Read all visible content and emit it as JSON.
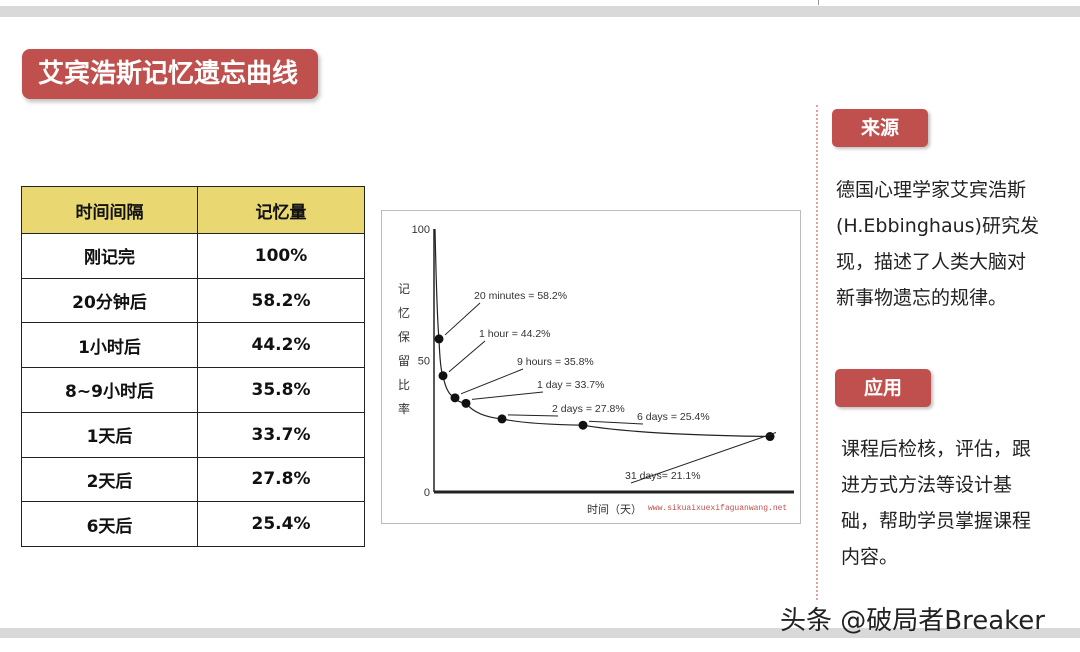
{
  "title": "艾宾浩斯记忆遗忘曲线",
  "table": {
    "headers": [
      "时间间隔",
      "记忆量"
    ],
    "rows": [
      [
        "刚记完",
        "100%"
      ],
      [
        "20分钟后",
        "58.2%"
      ],
      [
        "1小时后",
        "44.2%"
      ],
      [
        "8~9小时后",
        "35.8%"
      ],
      [
        "1天后",
        "33.7%"
      ],
      [
        "2天后",
        "27.8%"
      ],
      [
        "6天后",
        "25.4%"
      ]
    ]
  },
  "chart_data": {
    "type": "line",
    "y_ticks": [
      "100",
      "50",
      "0"
    ],
    "ylim": [
      0,
      100
    ],
    "ylabel": "记忆保留比率",
    "xlabel": "时间（天）",
    "source_text": "www.sikuaixuexifaguanwang.net",
    "x_scale": "non-linear",
    "points": [
      {
        "x": "20 minutes",
        "y": 58.2,
        "label": "20 minutes = 58.2%"
      },
      {
        "x": "1 hour",
        "y": 44.2,
        "label": "1 hour = 44.2%"
      },
      {
        "x": "9 hours",
        "y": 35.8,
        "label": "9 hours = 35.8%"
      },
      {
        "x": "1 day",
        "y": 33.7,
        "label": "1 day = 33.7%"
      },
      {
        "x": "2 days",
        "y": 27.8,
        "label": "2 days = 27.8%"
      },
      {
        "x": "6 days",
        "y": 25.4,
        "label": "6 days = 25.4%"
      },
      {
        "x": "31 days",
        "y": 21.1,
        "label": "31 days= 21.1%"
      }
    ]
  },
  "source_tag": "来源",
  "source_text": "德国心理学家艾宾浩斯(H.Ebbinghaus)研究发现，描述了人类大脑对新事物遗忘的规律。",
  "apply_tag": "应用",
  "apply_text": "课程后检核，评估，跟进方式方法等设计基础，帮助学员掌握课程内容。",
  "watermark": "头条 @破局者Breaker",
  "colors": {
    "accent": "#c0504d",
    "header_fill": "#e9d872",
    "band": "#d9d9d9"
  }
}
